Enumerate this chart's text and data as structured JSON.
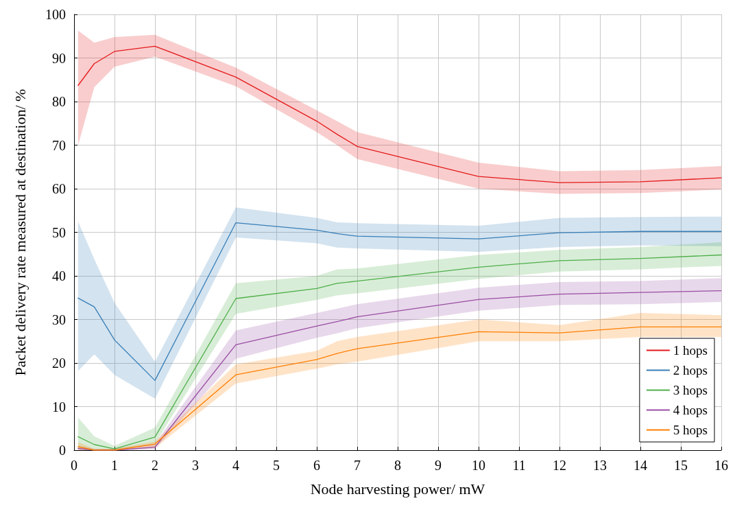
{
  "chart_data": {
    "type": "line",
    "xlabel": "Node harvesting power/ mW",
    "ylabel": "Packet delivery rate measured at destination/ %",
    "x": [
      0.1,
      0.5,
      1,
      2,
      4,
      6,
      6.5,
      7,
      10,
      12,
      14,
      16
    ],
    "xlim": [
      0,
      16
    ],
    "xticks": [
      0,
      1,
      2,
      3,
      4,
      5,
      6,
      7,
      8,
      9,
      10,
      11,
      12,
      13,
      14,
      15,
      16
    ],
    "ylim": [
      0,
      100
    ],
    "yticks": [
      0,
      10,
      20,
      30,
      40,
      50,
      60,
      70,
      80,
      90,
      100
    ],
    "grid": true,
    "legend": "bottom right",
    "marker": "none",
    "line_style": "solid",
    "series": [
      {
        "name": "1 hops",
        "color": "#e41a1c",
        "values": [
          83.7,
          88.7,
          91.5,
          92.7,
          85.6,
          75.5,
          72.5,
          69.7,
          62.8,
          61.4,
          61.6,
          62.5
        ],
        "lower": [
          70,
          83.3,
          88,
          90.3,
          83.5,
          73,
          70,
          66.8,
          60,
          58.8,
          59,
          59.8
        ],
        "upper": [
          96.3,
          93.5,
          94.8,
          95.3,
          87.8,
          78,
          75.5,
          73,
          66,
          64,
          64.3,
          65.2
        ]
      },
      {
        "name": "2 hops",
        "color": "#377eb8",
        "values": [
          34.9,
          32.9,
          25.3,
          16,
          52.2,
          50.5,
          49.7,
          49.1,
          48.5,
          49.9,
          50.2,
          50.2
        ],
        "lower": [
          18.2,
          22,
          17.3,
          11.8,
          48.8,
          47.5,
          46.5,
          46.3,
          45.5,
          46.6,
          47,
          46.8
        ],
        "upper": [
          52.5,
          43.8,
          33.8,
          20.3,
          55.7,
          53.3,
          52.3,
          52.1,
          51.5,
          53.3,
          53.5,
          53.6
        ]
      },
      {
        "name": "3 hops",
        "color": "#4daf4a",
        "values": [
          3.1,
          1.3,
          0.3,
          3,
          34.8,
          37.1,
          38.3,
          38.8,
          42,
          43.5,
          44,
          44.8
        ],
        "lower": [
          0.5,
          0,
          0,
          1.5,
          31.3,
          34.5,
          35.5,
          36,
          39.3,
          41,
          41.5,
          42.3
        ],
        "upper": [
          7.5,
          3.2,
          1,
          5.2,
          38.3,
          40,
          41.5,
          41.7,
          44.8,
          46,
          46.6,
          47.7
        ]
      },
      {
        "name": "4 hops",
        "color": "#984ea3",
        "values": [
          0.4,
          0,
          0,
          0.7,
          24.2,
          28.5,
          29.5,
          30.6,
          34.6,
          35.8,
          36.2,
          36.6
        ],
        "lower": [
          0,
          0,
          0,
          0.2,
          21,
          25.8,
          26.8,
          28,
          32,
          33.3,
          33.5,
          34
        ],
        "upper": [
          1,
          0.3,
          0.3,
          1.5,
          27.5,
          31.5,
          32.5,
          33.5,
          37.3,
          38.6,
          38.8,
          39.5
        ]
      },
      {
        "name": "5 hops",
        "color": "#ff7f00",
        "values": [
          0.8,
          0,
          0,
          1.4,
          17.3,
          20.8,
          22.2,
          23.3,
          27.2,
          26.9,
          28.3,
          28.3
        ],
        "lower": [
          0,
          0,
          0,
          0.5,
          15.3,
          18.7,
          19.7,
          20.3,
          25,
          25,
          26,
          26
        ],
        "upper": [
          1.8,
          0.3,
          0.3,
          2,
          19.7,
          22.8,
          25,
          26,
          30,
          28.7,
          31.5,
          31
        ]
      }
    ]
  }
}
